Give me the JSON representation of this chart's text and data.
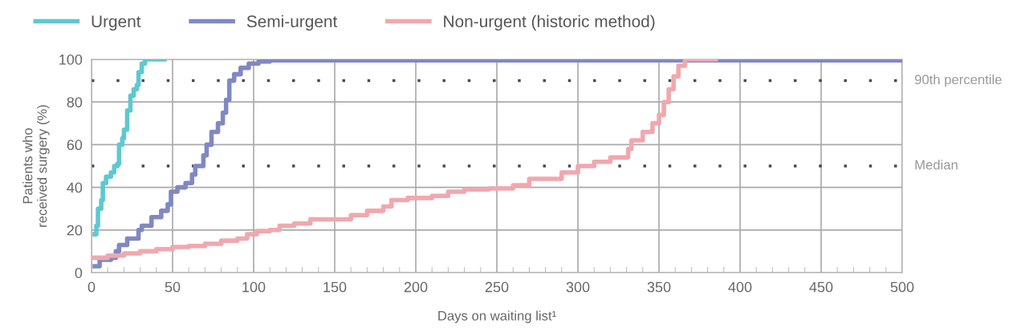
{
  "chart_data": {
    "type": "step",
    "xlabel": "Days on waiting list¹",
    "ylabel": "Patients who\nreceived surgery (%)",
    "xlim": [
      0,
      500
    ],
    "ylim": [
      0,
      100
    ],
    "xticks": [
      0,
      50,
      100,
      150,
      200,
      250,
      300,
      350,
      400,
      450,
      500
    ],
    "yticks": [
      0,
      20,
      40,
      60,
      80,
      100
    ],
    "grid": true,
    "legend": "top left",
    "line_style": "solid",
    "marker": "none",
    "series": [
      {
        "name": "Urgent",
        "color": "#5ec8d0",
        "x": [
          2,
          3,
          4,
          6,
          7,
          9,
          12,
          14,
          16,
          17,
          19,
          20,
          22,
          24,
          26,
          28,
          29,
          31,
          33,
          45
        ],
        "values": [
          18,
          22,
          30,
          34,
          42,
          45,
          47,
          50,
          51,
          60,
          63,
          67,
          76,
          83,
          86,
          88,
          94,
          98,
          100,
          100
        ]
      },
      {
        "name": "Semi-urgent",
        "color": "#8088c4",
        "x": [
          2,
          5,
          12,
          15,
          17,
          22,
          29,
          31,
          37,
          43,
          47,
          49,
          53,
          58,
          62,
          64,
          69,
          71,
          74,
          78,
          81,
          83,
          85,
          88,
          92,
          97,
          103,
          110,
          350,
          500
        ],
        "values": [
          3,
          6,
          7,
          10,
          13,
          16,
          20,
          22,
          26,
          29,
          32,
          38,
          40,
          42,
          46,
          50,
          55,
          60,
          66,
          70,
          75,
          81,
          90,
          93,
          96,
          98,
          99,
          99.5,
          99.5,
          100
        ]
      },
      {
        "name": "Non-urgent (historic method)",
        "color": "#f0a8ae",
        "x": [
          0,
          10,
          20,
          30,
          40,
          50,
          60,
          70,
          80,
          90,
          96,
          102,
          110,
          116,
          125,
          135,
          150,
          160,
          170,
          180,
          185,
          195,
          210,
          220,
          230,
          245,
          260,
          270,
          290,
          300,
          310,
          320,
          331,
          333,
          340,
          346,
          350,
          353,
          356,
          359,
          362,
          366,
          385
        ],
        "values": [
          7,
          8,
          9,
          10,
          11,
          12,
          12.5,
          13.5,
          15,
          16,
          18,
          19.5,
          20,
          22,
          23,
          25,
          25,
          27,
          29,
          31,
          34,
          35,
          36,
          38,
          39,
          39.5,
          41,
          44,
          47,
          50,
          52,
          54,
          58,
          62,
          66,
          70,
          74,
          80,
          86,
          92,
          97,
          100,
          100
        ]
      }
    ],
    "ref_lines": [
      {
        "axis": "y",
        "value": 90,
        "label": "90th percentile",
        "color": "#4a4a4a",
        "line_style": "dotted"
      },
      {
        "axis": "y",
        "value": 50,
        "label": "Median",
        "color": "#4a4a4a",
        "line_style": "dotted"
      }
    ]
  }
}
